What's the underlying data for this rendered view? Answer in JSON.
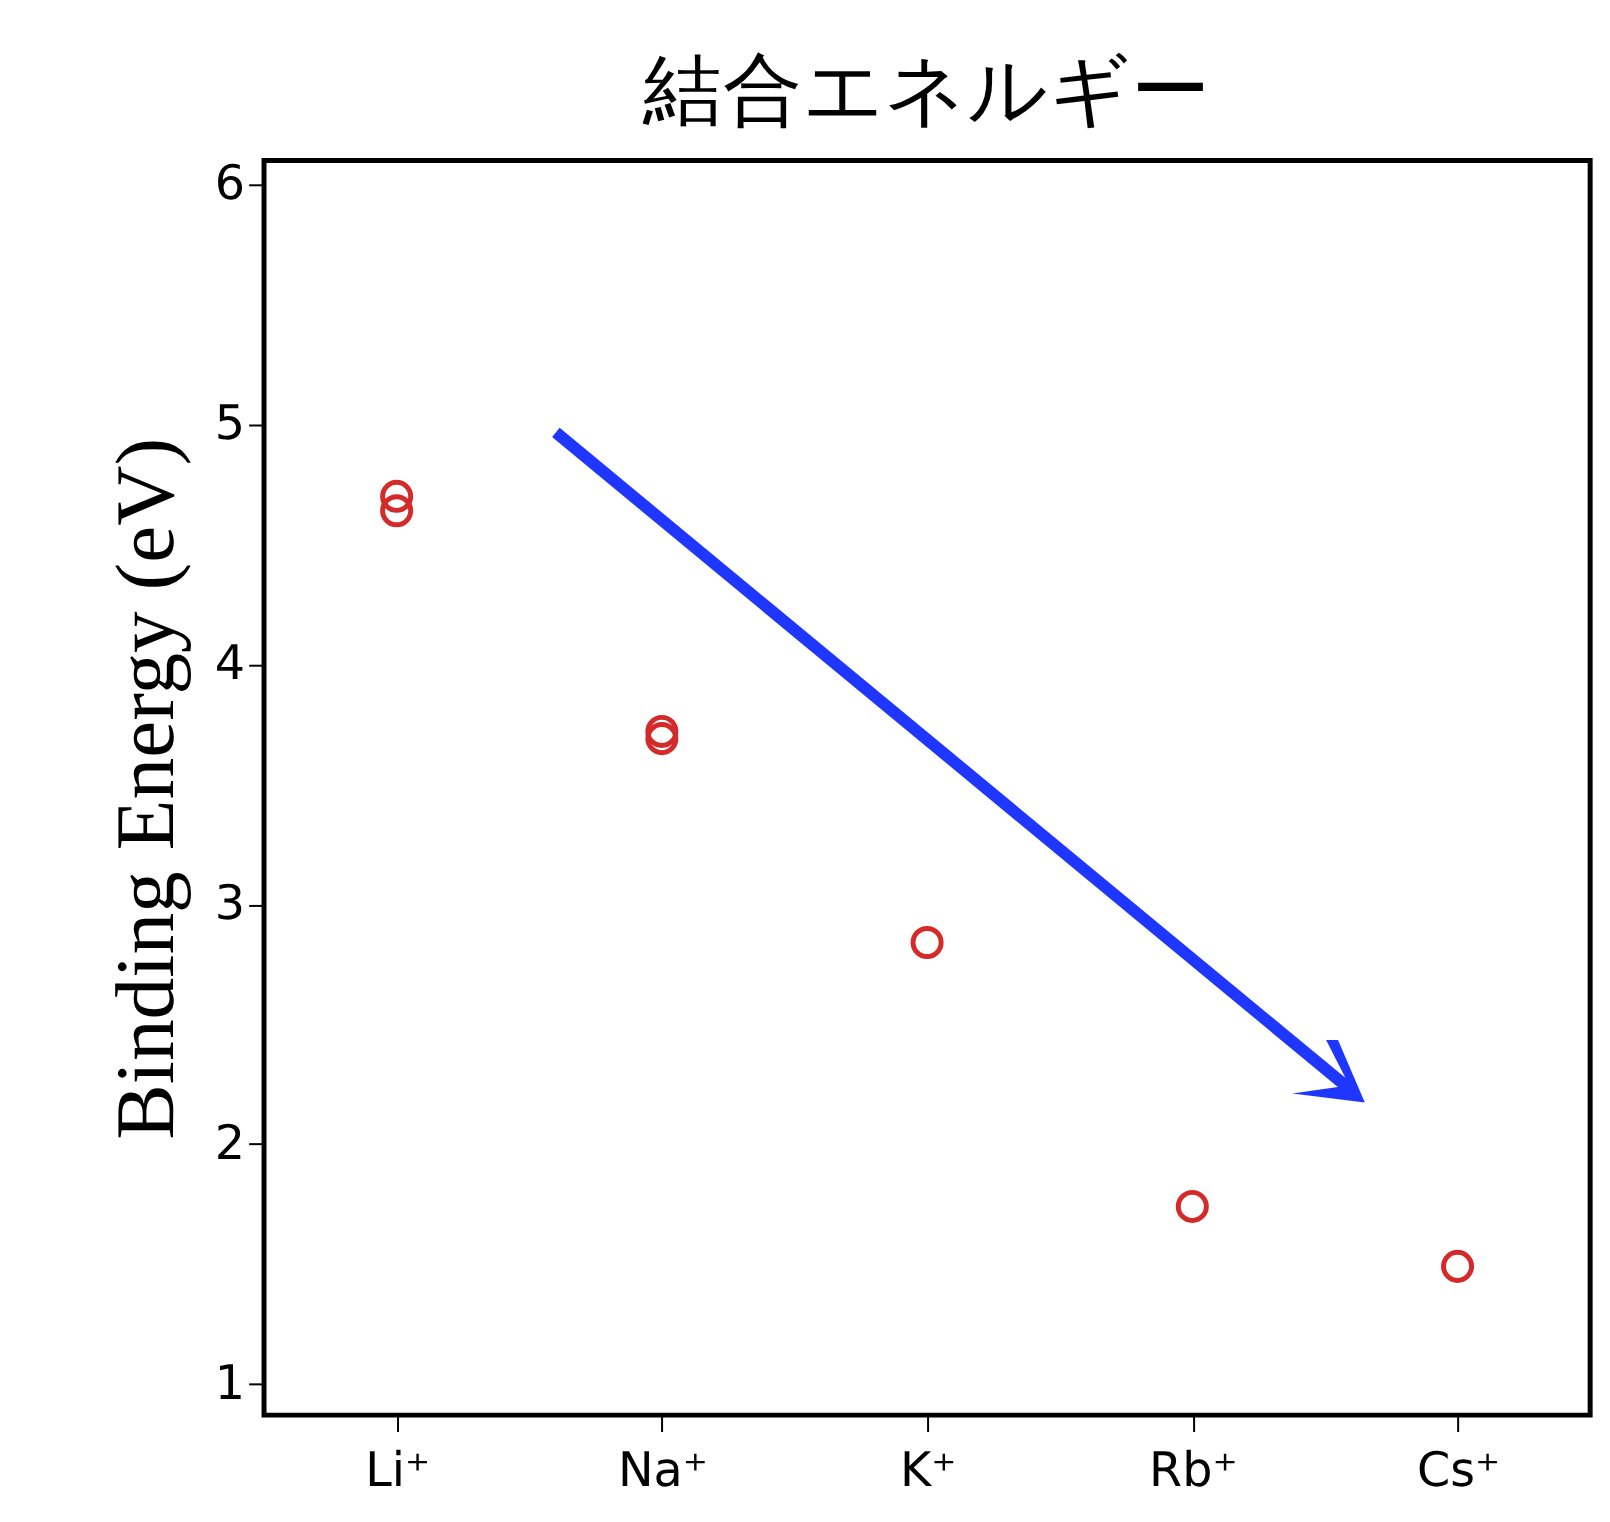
{
  "chart_data": {
    "type": "scatter",
    "title": "結合エネルギー",
    "ylabel": "Binding Energy (eV)",
    "categories": [
      "Li⁺",
      "Na⁺",
      "K⁺",
      "Rb⁺",
      "Cs⁺"
    ],
    "series": [
      {
        "x": [
          "Li⁺",
          "Li⁺",
          "Na⁺",
          "Na⁺",
          "K⁺",
          "Rb⁺",
          "Cs⁺"
        ],
        "values": [
          4.7,
          4.64,
          3.72,
          3.69,
          2.84,
          1.74,
          1.49
        ],
        "color": "#d42a2a"
      }
    ],
    "ylim": [
      0.87,
      6.1
    ],
    "yticks": [
      1,
      2,
      3,
      4,
      5,
      6
    ],
    "marker": "circle",
    "grid": false
  }
}
